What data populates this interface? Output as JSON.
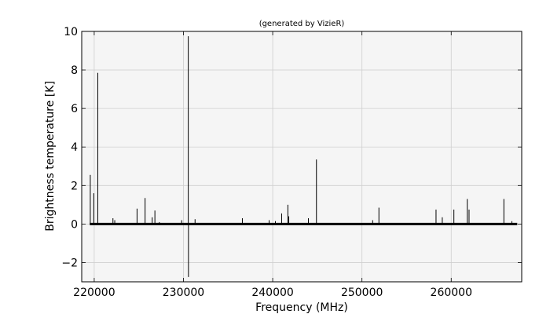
{
  "chart_data": {
    "type": "line",
    "title": "(generated by VizieR)",
    "xlabel": "Frequency (MHz)",
    "ylabel": "Brightness temperature [K]",
    "xlim": [
      218600,
      267900
    ],
    "ylim": [
      -3,
      10
    ],
    "x_ticks": [
      220000,
      230000,
      240000,
      250000,
      260000
    ],
    "y_ticks": [
      -2,
      0,
      2,
      4,
      6,
      8,
      10
    ],
    "grid": true,
    "baseline": {
      "x_start": 219500,
      "x_end": 267400,
      "y": 0
    },
    "series": [
      {
        "points": [
          [
            219560,
            2.55
          ],
          [
            219950,
            1.6
          ],
          [
            220400,
            7.85
          ],
          [
            222100,
            0.3
          ],
          [
            222300,
            0.2
          ],
          [
            224800,
            0.8
          ],
          [
            225700,
            1.35
          ],
          [
            226500,
            0.35
          ],
          [
            226800,
            0.7
          ],
          [
            227300,
            0.1
          ],
          [
            229800,
            0.2
          ],
          [
            230540,
            9.75
          ],
          [
            230560,
            -2.75
          ],
          [
            231300,
            0.25
          ],
          [
            236600,
            0.3
          ],
          [
            239600,
            0.2
          ],
          [
            240300,
            0.15
          ],
          [
            241000,
            0.55
          ],
          [
            241700,
            1.0
          ],
          [
            241800,
            0.4
          ],
          [
            244000,
            0.3
          ],
          [
            244900,
            3.35
          ],
          [
            251200,
            0.2
          ],
          [
            251900,
            0.85
          ],
          [
            258300,
            0.75
          ],
          [
            259000,
            0.35
          ],
          [
            260300,
            0.75
          ],
          [
            261800,
            1.3
          ],
          [
            262000,
            0.75
          ],
          [
            265900,
            1.3
          ],
          [
            266800,
            0.15
          ]
        ]
      }
    ]
  }
}
